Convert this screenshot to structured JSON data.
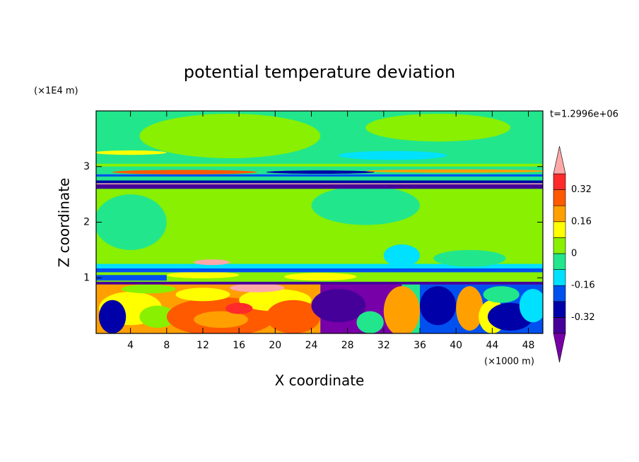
{
  "chart_data": {
    "type": "contour",
    "title": "potential temperature deviation",
    "xlabel": "X coordinate",
    "ylabel": "Z coordinate",
    "xunit": "(×1000 m)",
    "yunit": "(×1E4 m)",
    "annotation": "t=1.2996e+06",
    "xlim": [
      0.2,
      49.6
    ],
    "ylim": [
      0,
      4
    ],
    "xticks": [
      4,
      8,
      12,
      16,
      20,
      24,
      28,
      32,
      36,
      40,
      44,
      48
    ],
    "yticks": [
      1,
      2,
      3
    ],
    "levels": [
      -0.4,
      -0.32,
      -0.24,
      -0.16,
      -0.08,
      0,
      0.08,
      0.16,
      0.24,
      0.32,
      0.4
    ],
    "colors": [
      "#7800a8",
      "#46009a",
      "#0000a8",
      "#0050f0",
      "#00e0ff",
      "#22e68c",
      "#88f000",
      "#ffff00",
      "#ffa000",
      "#ff5a00",
      "#ff2a2a",
      "#ffa8a8"
    ],
    "colorbar_ticks": [
      -0.32,
      -0.16,
      0,
      0.16,
      0.32
    ]
  }
}
